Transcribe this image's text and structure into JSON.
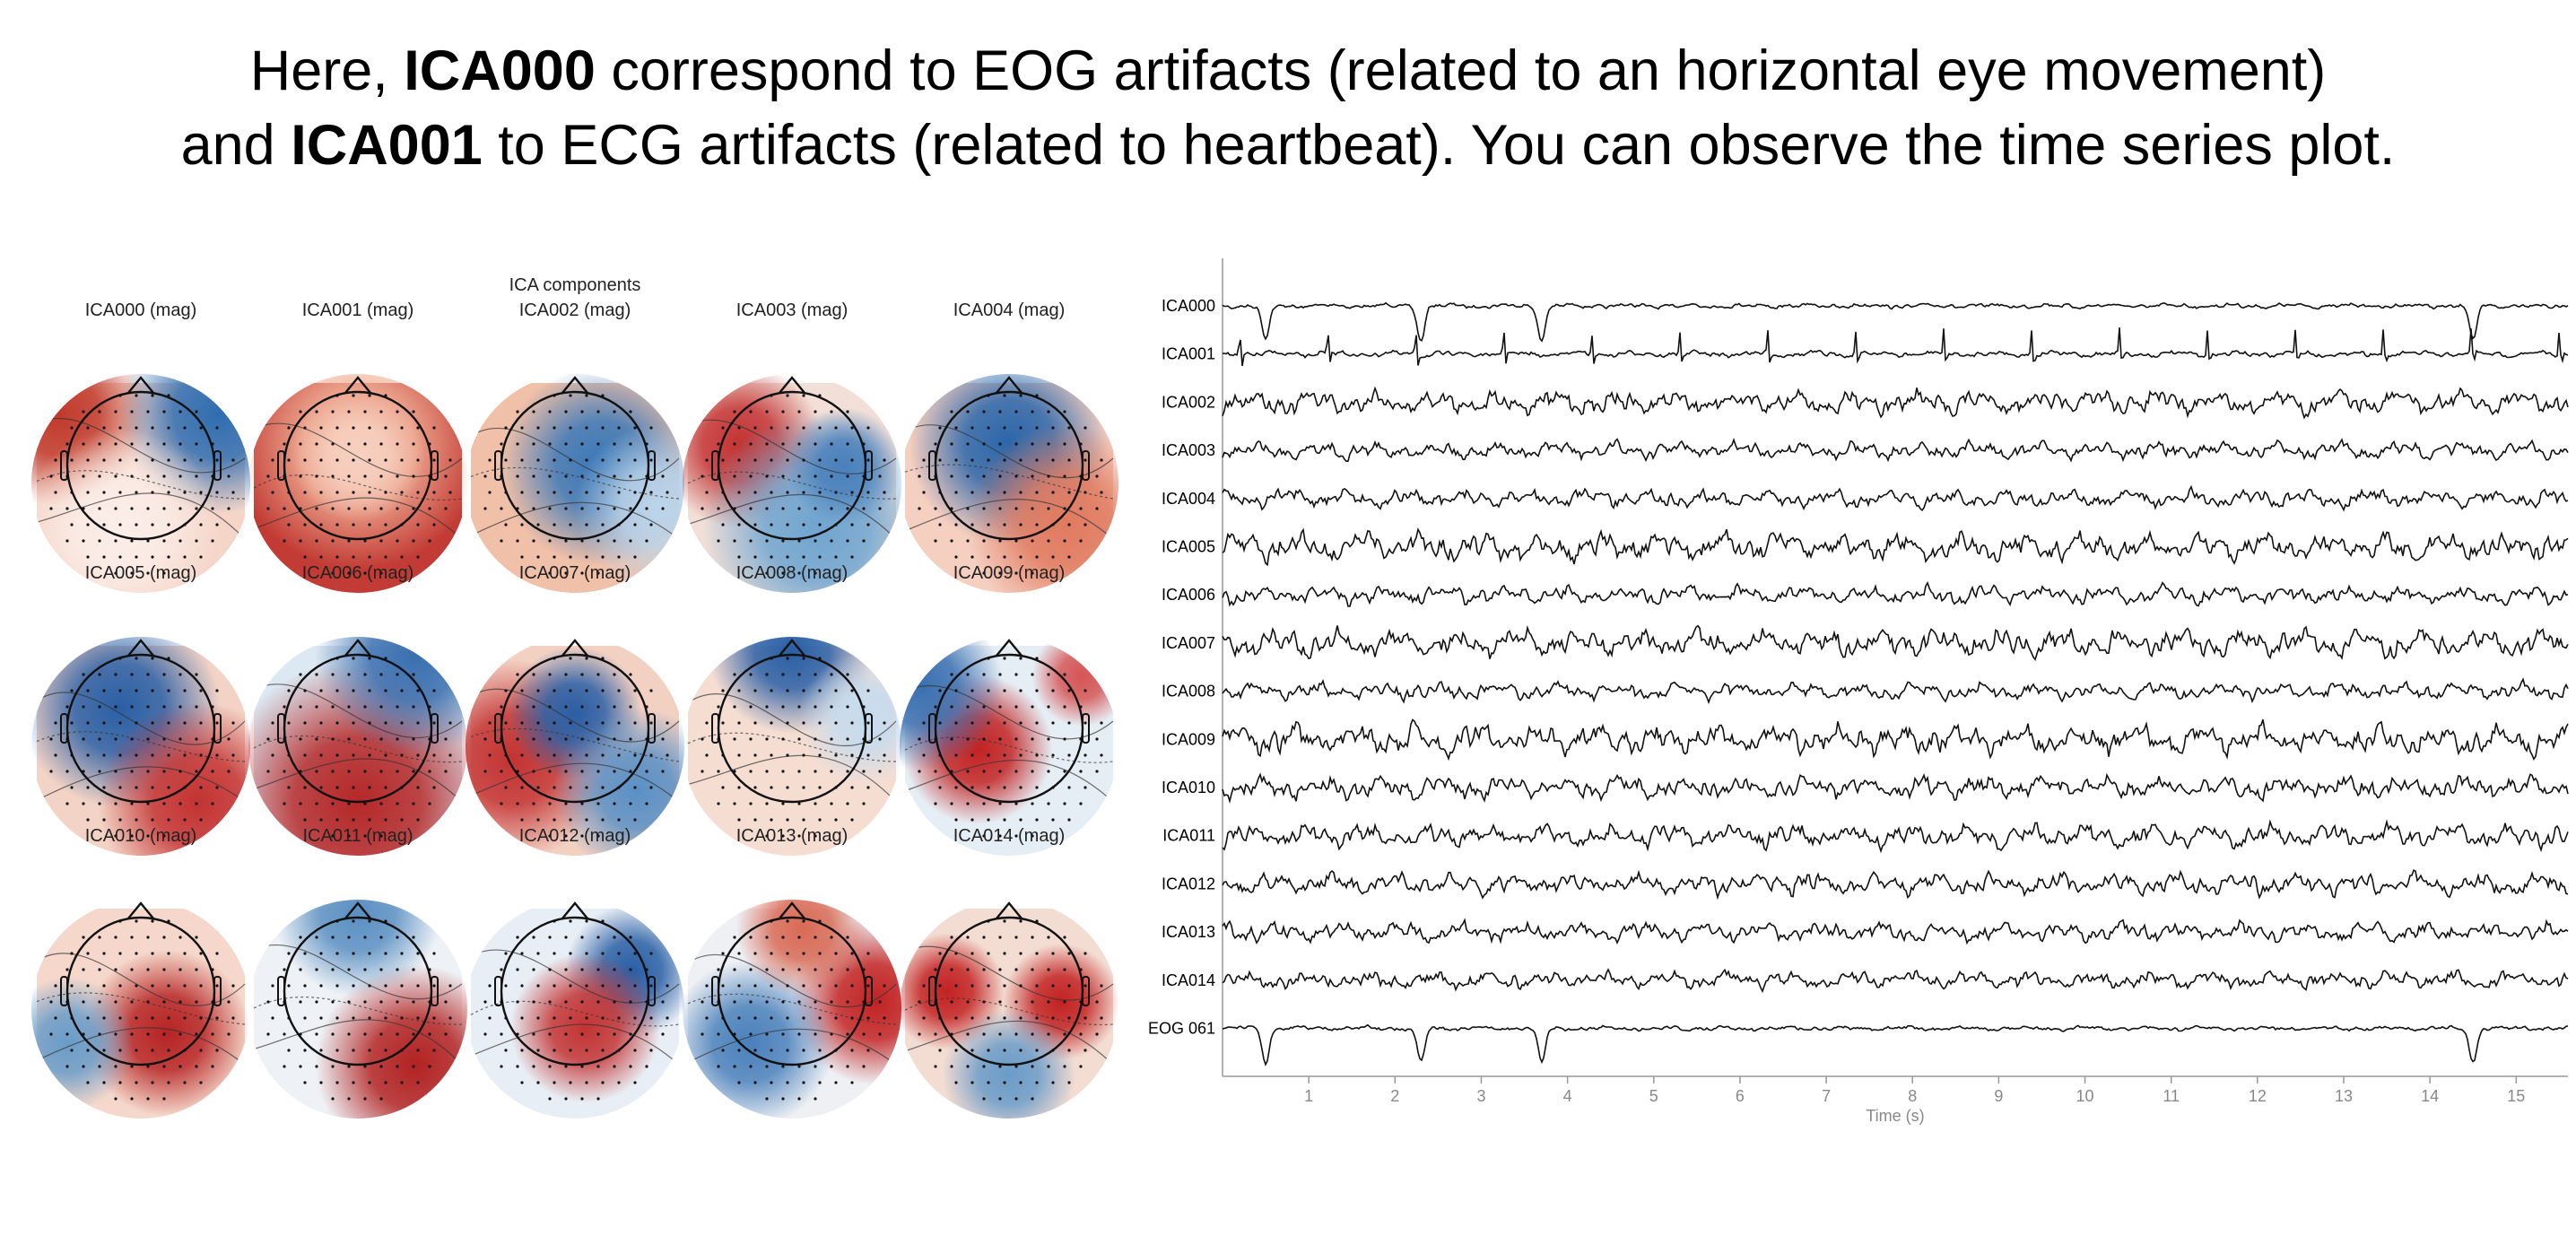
{
  "title": {
    "line1": [
      "Here, ",
      "ICA000",
      " correspond to EOG artifacts (related to an horizontal eye movement)"
    ],
    "line2": [
      "and ",
      "ICA001",
      " to ECG artifacts (related to heartbeat). You can observe the time series plot."
    ]
  },
  "topomaps": {
    "title": "ICA components",
    "labels": [
      "ICA000 (mag)",
      "ICA001 (mag)",
      "ICA002 (mag)",
      "ICA003 (mag)",
      "ICA004 (mag)",
      "ICA005 (mag)",
      "ICA006 (mag)",
      "ICA007 (mag)",
      "ICA008 (mag)",
      "ICA009 (mag)",
      "ICA010 (mag)",
      "ICA011 (mag)",
      "ICA012 (mag)",
      "ICA013 (mag)",
      "ICA014 (mag)"
    ]
  },
  "timeseries": {
    "channels": [
      "ICA000",
      "ICA001",
      "ICA002",
      "ICA003",
      "ICA004",
      "ICA005",
      "ICA006",
      "ICA007",
      "ICA008",
      "ICA009",
      "ICA010",
      "ICA011",
      "ICA012",
      "ICA013",
      "ICA014",
      "EOG 061"
    ],
    "xlim": [
      0,
      15.6
    ],
    "xticks": [
      1,
      2,
      3,
      4,
      5,
      6,
      7,
      8,
      9,
      10,
      11,
      12,
      13,
      14,
      15
    ],
    "xlabel": "Time (s)"
  }
}
